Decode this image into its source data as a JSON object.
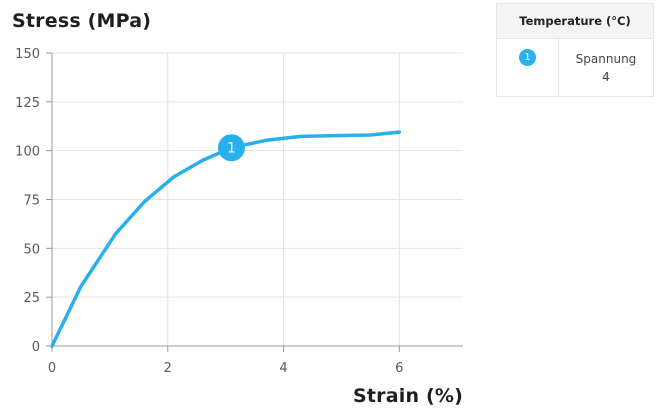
{
  "chart_data": {
    "type": "line",
    "ylabel": "Stress (MPa)",
    "xlabel": "Strain (%)",
    "xlim": [
      0,
      7.1
    ],
    "ylim": [
      0,
      150
    ],
    "xticks": [
      0,
      2,
      4,
      6
    ],
    "yticks": [
      0,
      25,
      50,
      75,
      100,
      125,
      150
    ],
    "grid": true,
    "series": [
      {
        "name": "Spannung",
        "color": "#29b0ec",
        "x": [
          0,
          0.5,
          1.1,
          1.6,
          2.1,
          2.6,
          3.1,
          3.7,
          4.3,
          4.9,
          5.5,
          6.0
        ],
        "y": [
          0,
          30.5,
          57.5,
          74,
          86.5,
          95,
          101.5,
          105.3,
          107.3,
          107.7,
          108,
          109.5
        ]
      }
    ],
    "annotations": [
      {
        "label": "1",
        "x": 3.1,
        "y": 101.5
      }
    ],
    "legend": {
      "placement": "top-right",
      "title": "Temperature (°C)",
      "entries": [
        {
          "marker": "1",
          "label": "Spannung",
          "value": "4"
        }
      ]
    }
  }
}
